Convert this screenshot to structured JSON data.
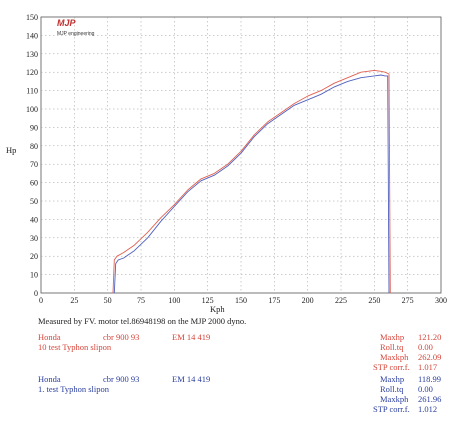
{
  "chart_data": {
    "type": "line",
    "logo_text": "MJP engineering",
    "xlabel": "Kph",
    "ylabel": "Hp",
    "xlim": [
      0,
      300
    ],
    "ylim": [
      0,
      150
    ],
    "x_ticks": [
      0,
      25,
      50,
      75,
      100,
      125,
      150,
      175,
      200,
      225,
      250,
      275,
      300
    ],
    "y_ticks": [
      0,
      10,
      20,
      30,
      40,
      50,
      60,
      70,
      80,
      90,
      100,
      110,
      120,
      130,
      140,
      150
    ],
    "grid": true,
    "colors": {
      "run1": "#e06050",
      "run2": "#5060c0"
    },
    "series": [
      {
        "name": "10 test Typhon slipon",
        "color": "#e06050",
        "points": [
          [
            54,
            0
          ],
          [
            55,
            18
          ],
          [
            57,
            20
          ],
          [
            62,
            22
          ],
          [
            70,
            26
          ],
          [
            80,
            33
          ],
          [
            90,
            41
          ],
          [
            100,
            48
          ],
          [
            110,
            56
          ],
          [
            120,
            62
          ],
          [
            130,
            65
          ],
          [
            140,
            70
          ],
          [
            150,
            77
          ],
          [
            160,
            86
          ],
          [
            170,
            93
          ],
          [
            180,
            98
          ],
          [
            190,
            103
          ],
          [
            200,
            107
          ],
          [
            210,
            110
          ],
          [
            220,
            114
          ],
          [
            230,
            117
          ],
          [
            240,
            120
          ],
          [
            250,
            121
          ],
          [
            255,
            120.5
          ],
          [
            258,
            120
          ],
          [
            261,
            119
          ],
          [
            262,
            0
          ]
        ]
      },
      {
        "name": "1. test Typhon slipon",
        "color": "#5060c0",
        "points": [
          [
            55,
            0
          ],
          [
            56,
            16
          ],
          [
            58,
            18
          ],
          [
            62,
            19
          ],
          [
            70,
            23
          ],
          [
            80,
            30
          ],
          [
            90,
            39
          ],
          [
            100,
            47
          ],
          [
            110,
            55
          ],
          [
            120,
            61
          ],
          [
            130,
            64
          ],
          [
            140,
            69
          ],
          [
            150,
            76
          ],
          [
            160,
            85
          ],
          [
            170,
            92
          ],
          [
            180,
            97
          ],
          [
            190,
            102
          ],
          [
            200,
            105
          ],
          [
            210,
            108
          ],
          [
            220,
            112
          ],
          [
            230,
            115
          ],
          [
            240,
            117
          ],
          [
            250,
            118
          ],
          [
            255,
            118.5
          ],
          [
            258,
            118
          ],
          [
            260,
            118
          ],
          [
            261,
            0
          ]
        ]
      }
    ]
  },
  "caption": "Measured by FV. motor tel.86948198 on the MJP 2000 dyno.",
  "runs": [
    {
      "make": "Honda",
      "model": "cbr 900 93",
      "em": "EM 14 419",
      "desc": "10 test Typhon slipon",
      "stats": [
        {
          "label": "Maxhp",
          "value": "121.20"
        },
        {
          "label": "Roll.tq",
          "value": "0.00"
        },
        {
          "label": "Maxkph",
          "value": "262.09"
        },
        {
          "label": "STP corr.f.",
          "value": "1.017"
        }
      ]
    },
    {
      "make": "Honda",
      "model": "cbr 900 93",
      "em": "EM 14 419",
      "desc": "1. test Typhon slipon",
      "stats": [
        {
          "label": "Maxhp",
          "value": "118.99"
        },
        {
          "label": "Roll.tq",
          "value": "0.00"
        },
        {
          "label": "Maxkph",
          "value": "261.96"
        },
        {
          "label": "STP corr.f.",
          "value": "1.012"
        }
      ]
    }
  ]
}
